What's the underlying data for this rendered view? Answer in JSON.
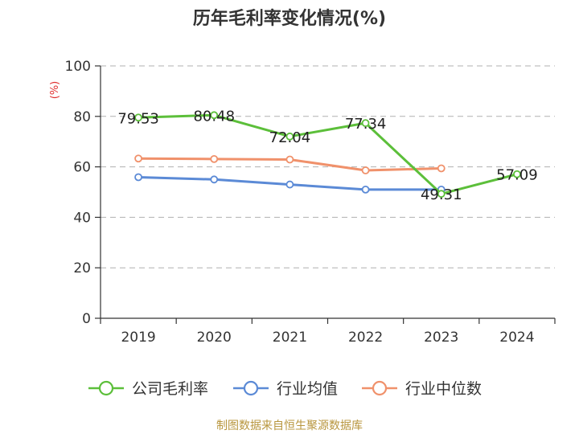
{
  "chart_data": {
    "type": "line",
    "title": "历年毛利率变化情况(%)",
    "unit_label": "(%)",
    "categories": [
      "2019",
      "2020",
      "2021",
      "2022",
      "2023",
      "2024"
    ],
    "ylim": [
      0,
      100
    ],
    "yticks": [
      0,
      20,
      40,
      60,
      80,
      100
    ],
    "grid": true,
    "legend_position": "bottom",
    "series": [
      {
        "name": "公司毛利率",
        "color": "#5cbf3a",
        "values": [
          79.53,
          80.48,
          72.04,
          77.34,
          49.31,
          57.09
        ],
        "labels": [
          "79.53",
          "80.48",
          "72.04",
          "77.34",
          "49.31",
          "57.09"
        ]
      },
      {
        "name": "行业均值",
        "color": "#5b8ad6",
        "values": [
          55.9,
          55.0,
          53.0,
          51.0,
          51.0,
          null
        ]
      },
      {
        "name": "行业中位数",
        "color": "#f0916b",
        "values": [
          63.3,
          63.1,
          62.9,
          58.6,
          59.4,
          null
        ]
      }
    ],
    "source": "制图数据来自恒生聚源数据库"
  }
}
